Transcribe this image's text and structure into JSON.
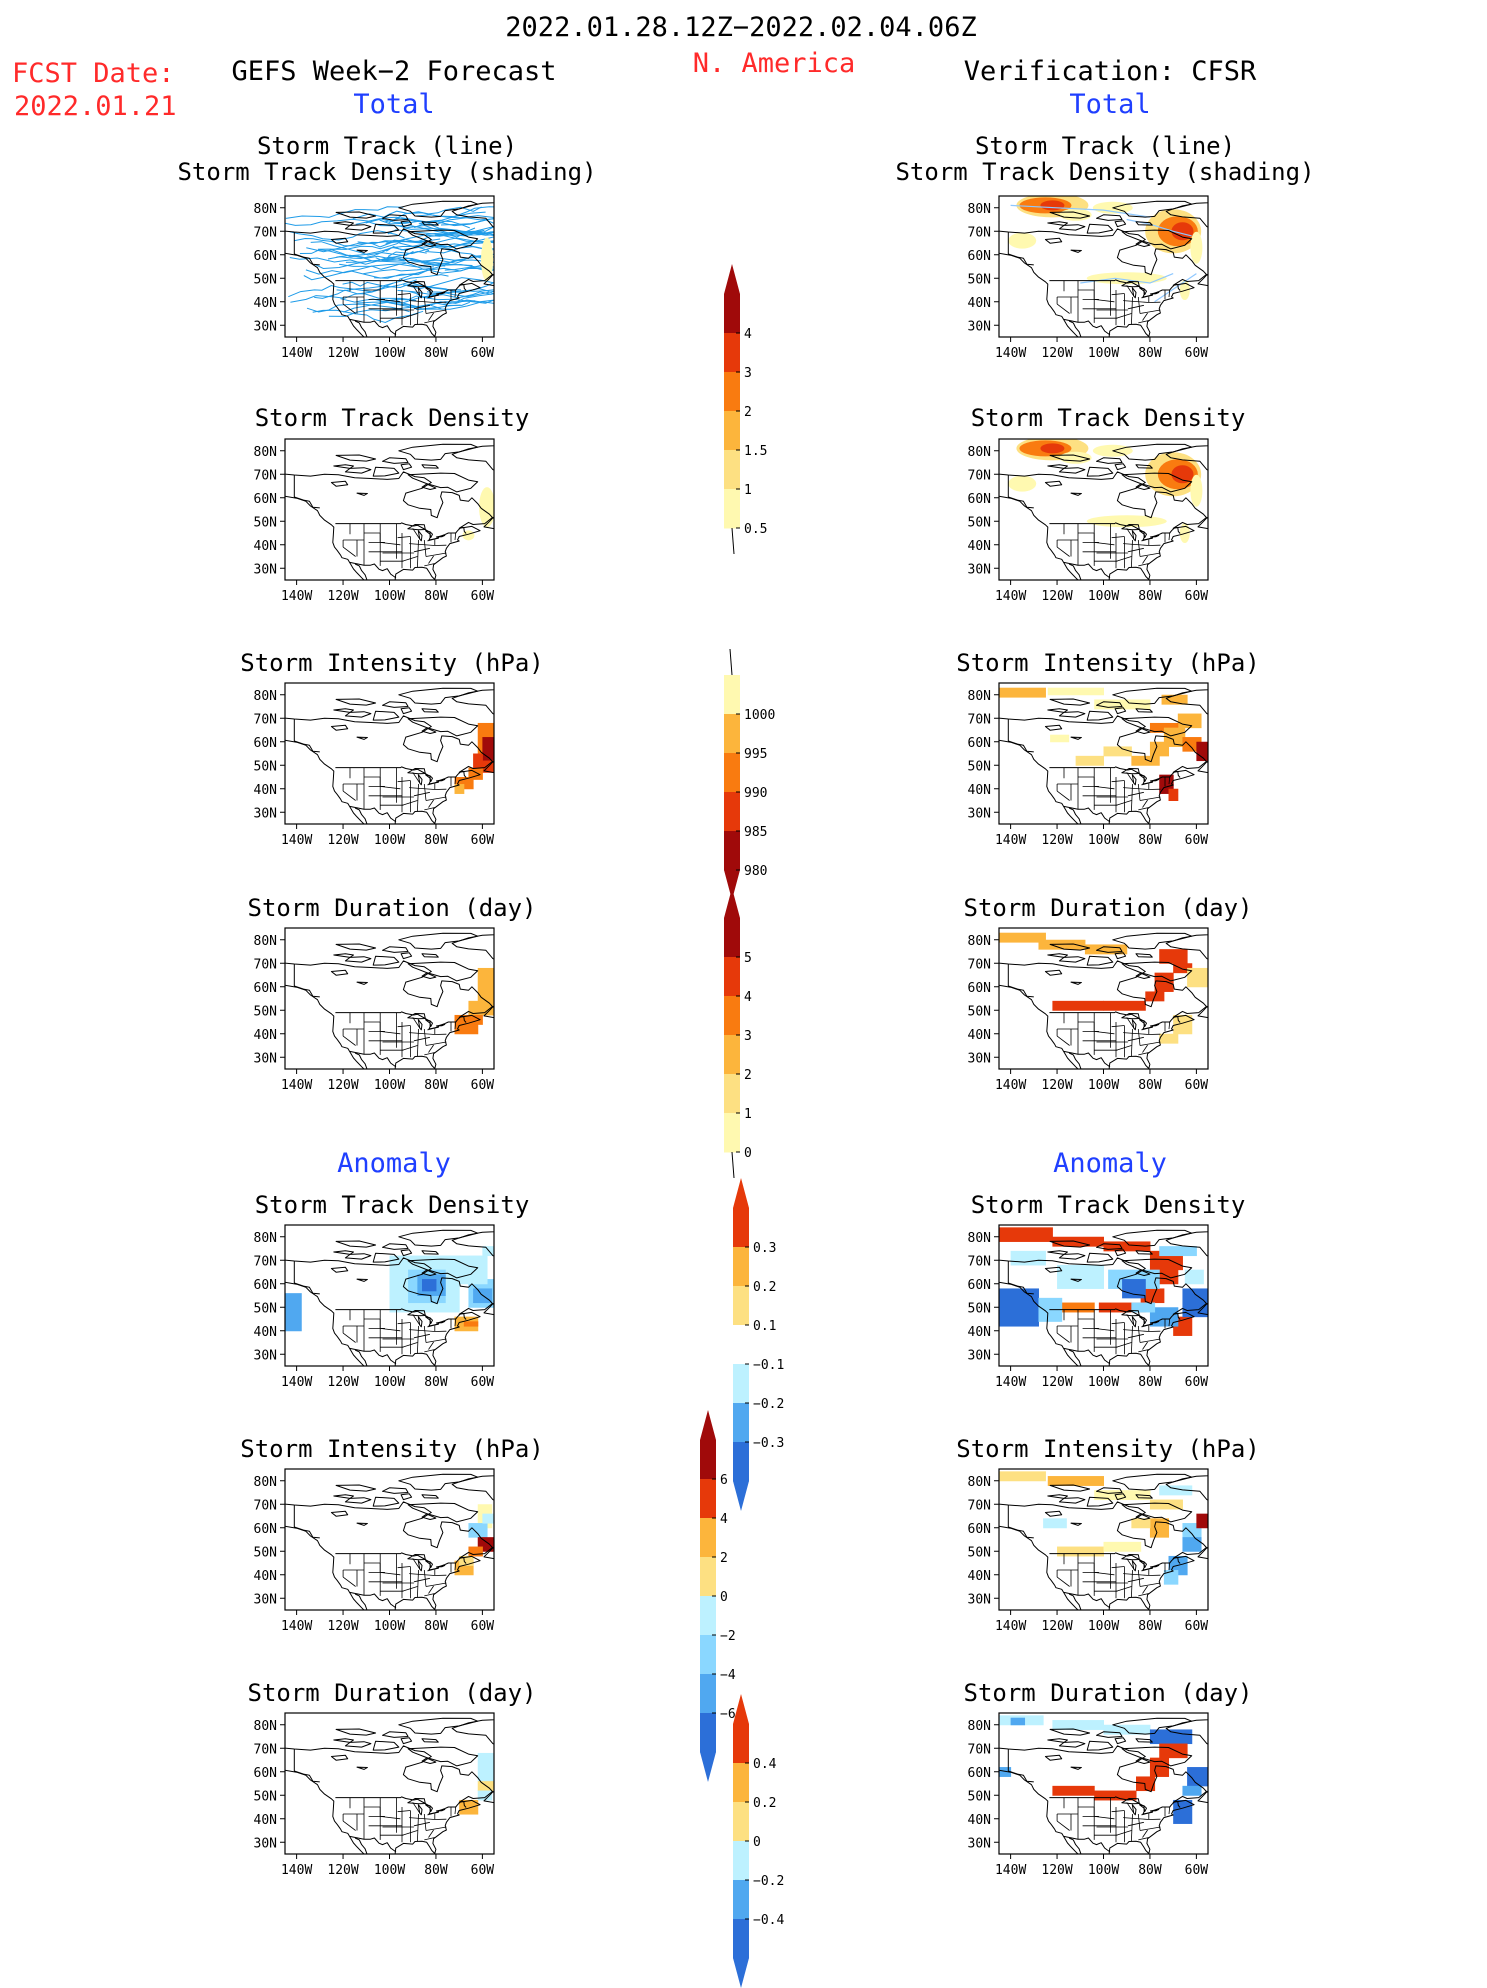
{
  "header": {
    "period": "2022.01.28.12Z−2022.02.04.06Z",
    "region": "N. America",
    "fcst_label": "FCST Date:",
    "fcst_date": "2022.01.21",
    "left_title": "GEFS Week−2 Forecast",
    "right_title": "Verification: CFSR",
    "total_label": "Total",
    "anomaly_label": "Anomaly"
  },
  "titles": {
    "track1": "Storm Track (line)",
    "track2": "Storm Track Density (shading)",
    "density": "Storm Track Density",
    "intensity": "Storm Intensity (hPa)",
    "duration": "Storm Duration (day)"
  },
  "map_axes": {
    "lat_labels": [
      "80N",
      "70N",
      "60N",
      "50N",
      "40N",
      "30N"
    ],
    "lon_labels": [
      "140W",
      "120W",
      "100W",
      "80W",
      "60W"
    ]
  },
  "colors": {
    "track_line": "#1e9be8",
    "verif_track_line": "#8fc8ff",
    "warm": [
      "#fff9b0",
      "#fde082",
      "#fcb53c",
      "#f97b10",
      "#e6390a",
      "#a00a0a"
    ],
    "cool": [
      "#bdf1ff",
      "#8ad7ff",
      "#50a8f0",
      "#2c6fd8"
    ]
  },
  "colorbars": [
    {
      "id": "density",
      "labels": [
        "4",
        "3",
        "2",
        "1.5",
        "1",
        "0.5"
      ]
    },
    {
      "id": "intensity",
      "labels": [
        "1000",
        "995",
        "990",
        "985",
        "980"
      ]
    },
    {
      "id": "duration",
      "labels": [
        "5",
        "4",
        "3",
        "2",
        "1",
        "0"
      ]
    },
    {
      "id": "anom_density",
      "labels": [
        "0.3",
        "0.2",
        "0.1",
        "−0.1",
        "−0.2",
        "−0.3"
      ]
    },
    {
      "id": "anom_intensity",
      "labels": [
        "6",
        "4",
        "2",
        "0",
        "−2",
        "−4",
        "−6"
      ]
    },
    {
      "id": "anom_duration",
      "labels": [
        "0.4",
        "0.2",
        "0",
        "−0.2",
        "−0.4"
      ]
    }
  ]
}
